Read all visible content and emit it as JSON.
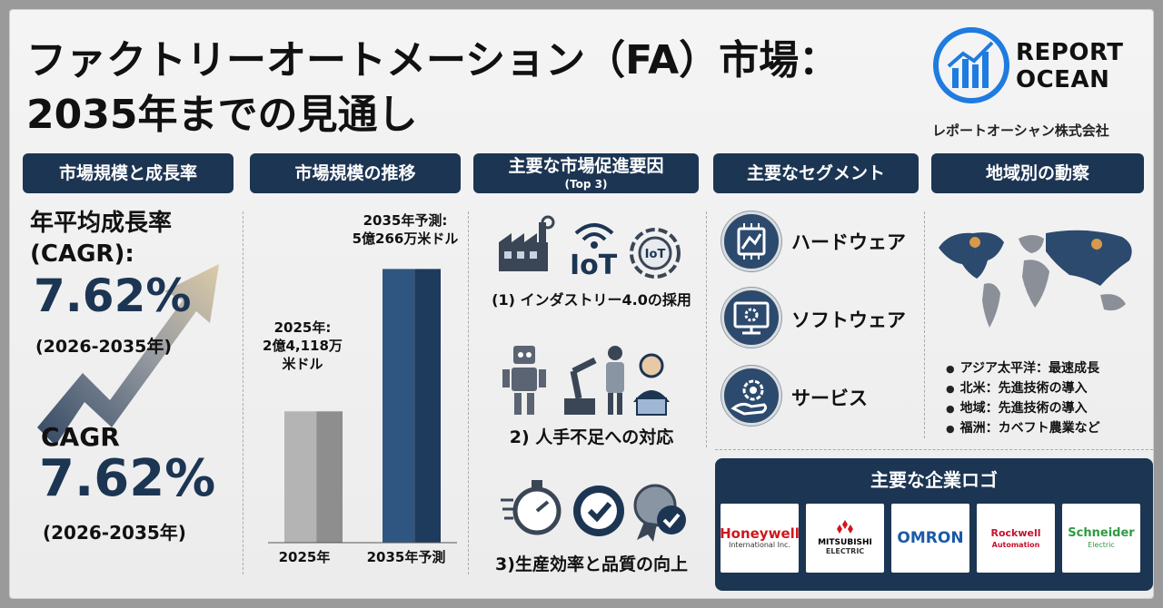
{
  "title_line1": "ファクトリーオートメーション（FA）市場：",
  "title_line2": "2035年までの見通し",
  "logo": {
    "line1": "REPORT",
    "line2": "OCEAN",
    "sub": "レポートオーシャン株式会社"
  },
  "headers": {
    "col1": "市場規模と成長率",
    "col2": "市場規模の推移",
    "col3": "主要な市場促進要因",
    "col3_sub": "(Top 3)",
    "col4": "主要なセグメント",
    "col5": "地域別の動察"
  },
  "cagr": {
    "label_a": "年平均成長率",
    "label_b": "(CAGR):",
    "value": "7.62%",
    "period": "(2026-2035年)",
    "label2": "CAGR",
    "value2": "7.62%",
    "period2": "(2026-2035年)"
  },
  "chart_data": {
    "type": "bar",
    "categories": [
      "2025年",
      "2035年予測"
    ],
    "values": [
      24118,
      50266
    ],
    "data_labels": [
      "2025年:\n2億4,118万\n米ドル",
      "2035年予測:\n5億266万米ドル"
    ],
    "ylim": [
      0,
      52000
    ]
  },
  "bar_labels": {
    "b1_l1": "2025年:",
    "b1_l2": "2億4,118万",
    "b1_l3": "米ドル",
    "b2_l1": "2035年予測:",
    "b2_l2": "5億266万米ドル"
  },
  "drivers": [
    "(1) インダストリー4.0の採用",
    "2) 人手不足への対応",
    "3)生産効率と品質の向上"
  ],
  "iot_label": "IoT",
  "iot_badge": "IoT",
  "segments": [
    "ハードウェア",
    "ソフトウェア",
    "サービス"
  ],
  "regions": [
    "アジア太平洋：最速成長",
    "北米：先進技術の導入",
    "地域：先進技術の導入",
    "福洲：カベフト農業など"
  ],
  "companies_title": "主要な企業ロゴ",
  "companies": [
    {
      "name": "Honeywell",
      "sub": "International Inc.",
      "color": "#d0171d"
    },
    {
      "name": "MITSUBISHI",
      "sub": "ELECTRIC",
      "color": "#111111"
    },
    {
      "name": "OMRON",
      "sub": "",
      "color": "#1a5aa8"
    },
    {
      "name": "Rockwell",
      "sub": "Automation",
      "color": "#c8102e"
    },
    {
      "name": "Schneider",
      "sub": "Electric",
      "color": "#2d9b43"
    }
  ],
  "colors": {
    "navy": "#1c3553",
    "bar2025": "#a8a8a8",
    "bar2035": "#2a4a6f"
  }
}
